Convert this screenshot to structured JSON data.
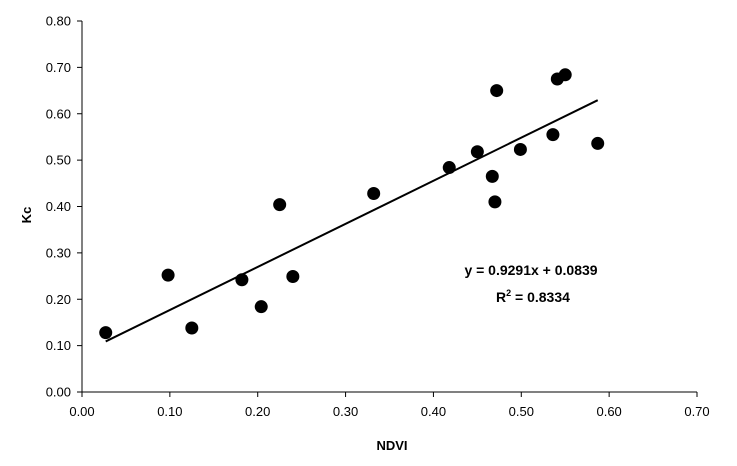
{
  "chart_data": {
    "type": "scatter",
    "title": "",
    "xlabel": "NDVI",
    "ylabel": "Kc",
    "xlim": [
      0,
      0.7
    ],
    "ylim": [
      0,
      0.8
    ],
    "x_ticks": [
      "0.00",
      "0.10",
      "0.20",
      "0.30",
      "0.40",
      "0.50",
      "0.60",
      "0.70"
    ],
    "y_ticks": [
      "0.00",
      "0.10",
      "0.20",
      "0.30",
      "0.40",
      "0.50",
      "0.60",
      "0.70",
      "0.80"
    ],
    "grid": false,
    "legend": "none",
    "series": [
      {
        "points": [
          {
            "x": 0.027,
            "y": 0.128
          },
          {
            "x": 0.098,
            "y": 0.252
          },
          {
            "x": 0.125,
            "y": 0.138
          },
          {
            "x": 0.182,
            "y": 0.242
          },
          {
            "x": 0.204,
            "y": 0.184
          },
          {
            "x": 0.225,
            "y": 0.404
          },
          {
            "x": 0.24,
            "y": 0.249
          },
          {
            "x": 0.332,
            "y": 0.428
          },
          {
            "x": 0.418,
            "y": 0.484
          },
          {
            "x": 0.45,
            "y": 0.518
          },
          {
            "x": 0.467,
            "y": 0.465
          },
          {
            "x": 0.47,
            "y": 0.41
          },
          {
            "x": 0.472,
            "y": 0.65
          },
          {
            "x": 0.499,
            "y": 0.523
          },
          {
            "x": 0.536,
            "y": 0.555
          },
          {
            "x": 0.541,
            "y": 0.675
          },
          {
            "x": 0.55,
            "y": 0.684
          },
          {
            "x": 0.587,
            "y": 0.536
          }
        ]
      }
    ],
    "trendline": {
      "slope": 0.9291,
      "intercept": 0.0839,
      "x_range": [
        0.027,
        0.587
      ]
    },
    "equation_line1": "y = 0.9291x + 0.0839",
    "r2_prefix": "R",
    "r2_superscript": "2",
    "r2_value": " = 0.8334"
  }
}
